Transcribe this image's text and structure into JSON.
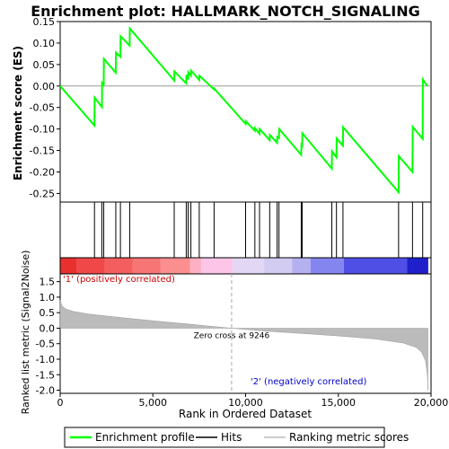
{
  "chart_data": {
    "title": "Enrichment plot: HALLMARK_NOTCH_SIGNALING",
    "type": "line",
    "xlim": [
      0,
      20000
    ],
    "x_ticks": [
      0,
      5000,
      10000,
      15000,
      20000
    ],
    "x_tick_labels": [
      "0",
      "5,000",
      "10,000",
      "15,000",
      "20,000"
    ],
    "xlabel": "Rank in Ordered Dataset",
    "es_panel": {
      "ylabel": "Enrichment score (ES)",
      "ylim": [
        -0.27,
        0.15
      ],
      "y_ticks": [
        -0.25,
        -0.2,
        -0.15,
        -0.1,
        -0.05,
        0.0,
        0.05,
        0.1,
        0.15
      ],
      "y_tick_labels": [
        "-0.25",
        "-0.20",
        "-0.15",
        "-0.10",
        "-0.05",
        "0.00",
        "0.05",
        "0.10",
        "0.15"
      ],
      "line_color": "#00ff00",
      "profile": [
        [
          0,
          0.0
        ],
        [
          1850,
          -0.092
        ],
        [
          1860,
          -0.027
        ],
        [
          2250,
          -0.049
        ],
        [
          2260,
          0.008
        ],
        [
          2350,
          0.004
        ],
        [
          2360,
          0.063
        ],
        [
          3000,
          0.031
        ],
        [
          3010,
          0.078
        ],
        [
          3250,
          0.068
        ],
        [
          3260,
          0.116
        ],
        [
          3750,
          0.094
        ],
        [
          3760,
          0.134
        ],
        [
          6150,
          0.013
        ],
        [
          6160,
          0.034
        ],
        [
          6800,
          0.006
        ],
        [
          6810,
          0.026
        ],
        [
          6900,
          0.015
        ],
        [
          6910,
          0.032
        ],
        [
          7050,
          0.024
        ],
        [
          7060,
          0.036
        ],
        [
          7500,
          0.014
        ],
        [
          7510,
          0.024
        ],
        [
          8300,
          -0.008
        ],
        [
          8310,
          -0.006
        ],
        [
          10000,
          -0.088
        ],
        [
          10010,
          -0.082
        ],
        [
          10500,
          -0.104
        ],
        [
          10510,
          -0.098
        ],
        [
          10750,
          -0.111
        ],
        [
          10760,
          -0.1
        ],
        [
          11300,
          -0.126
        ],
        [
          11310,
          -0.114
        ],
        [
          11700,
          -0.132
        ],
        [
          11710,
          -0.118
        ],
        [
          11800,
          -0.121
        ],
        [
          11810,
          -0.1
        ],
        [
          13000,
          -0.16
        ],
        [
          13010,
          -0.137
        ],
        [
          13050,
          -0.139
        ],
        [
          13060,
          -0.11
        ],
        [
          14650,
          -0.192
        ],
        [
          14660,
          -0.152
        ],
        [
          14900,
          -0.166
        ],
        [
          14910,
          -0.122
        ],
        [
          15250,
          -0.139
        ],
        [
          15260,
          -0.096
        ],
        [
          18250,
          -0.247
        ],
        [
          18260,
          -0.163
        ],
        [
          19000,
          -0.2
        ],
        [
          19010,
          -0.095
        ],
        [
          19550,
          -0.123
        ],
        [
          19560,
          0.015
        ],
        [
          19800,
          0.0
        ]
      ]
    },
    "hits": [
      1850,
      2250,
      2350,
      3000,
      3250,
      3750,
      6150,
      6800,
      6900,
      7050,
      7500,
      8300,
      10000,
      10500,
      10750,
      11300,
      11700,
      11800,
      13000,
      13050,
      14650,
      14900,
      15250,
      18250,
      19000,
      19550
    ],
    "metric_panel": {
      "ylabel": "Ranked list metric (Signal2Noise)",
      "ylim": [
        -2.1,
        1.75
      ],
      "y_ticks": [
        -2.0,
        -1.5,
        -1.0,
        -0.5,
        0.0,
        0.5,
        1.0,
        1.5
      ],
      "y_tick_labels": [
        "-2.0",
        "-1.5",
        "-1.0",
        "-0.5",
        "0.0",
        "0.5",
        "1.0",
        "1.5"
      ],
      "metric_curve": [
        [
          0,
          0.9
        ],
        [
          100,
          0.72
        ],
        [
          300,
          0.62
        ],
        [
          700,
          0.54
        ],
        [
          1500,
          0.46
        ],
        [
          3000,
          0.36
        ],
        [
          5000,
          0.24
        ],
        [
          7000,
          0.13
        ],
        [
          9246,
          0.0
        ],
        [
          11000,
          -0.09
        ],
        [
          13000,
          -0.17
        ],
        [
          15000,
          -0.25
        ],
        [
          17000,
          -0.35
        ],
        [
          18500,
          -0.48
        ],
        [
          19200,
          -0.62
        ],
        [
          19500,
          -0.78
        ],
        [
          19700,
          -1.05
        ],
        [
          19800,
          -1.5
        ],
        [
          19830,
          -2.0
        ]
      ],
      "zero_cross": 9246,
      "zero_cross_label": "Zero cross at 9246",
      "positive_label": "'1' (positively correlated)",
      "negative_label": "'2' (negatively correlated)"
    },
    "color_bar": [
      {
        "from": 0,
        "to": 900,
        "color": "#e8312f"
      },
      {
        "from": 900,
        "to": 2400,
        "color": "#f04848"
      },
      {
        "from": 2400,
        "to": 3900,
        "color": "#f55e5e"
      },
      {
        "from": 3900,
        "to": 5400,
        "color": "#f87575"
      },
      {
        "from": 5400,
        "to": 7000,
        "color": "#fb8e8e"
      },
      {
        "from": 7000,
        "to": 7600,
        "color": "#fdb0c4"
      },
      {
        "from": 7600,
        "to": 9300,
        "color": "#fdc6e8"
      },
      {
        "from": 9300,
        "to": 11000,
        "color": "#e2d8f5"
      },
      {
        "from": 11000,
        "to": 12500,
        "color": "#d2ccf3"
      },
      {
        "from": 12500,
        "to": 13500,
        "color": "#b5b0ef"
      },
      {
        "from": 13500,
        "to": 15300,
        "color": "#8585f0"
      },
      {
        "from": 15300,
        "to": 18700,
        "color": "#4f4fe6"
      },
      {
        "from": 18700,
        "to": 19850,
        "color": "#1f1fcc"
      }
    ],
    "legend": {
      "placement": "bottom",
      "items": [
        {
          "label": "Enrichment profile",
          "color": "#00ff00",
          "kind": "line"
        },
        {
          "label": "Hits",
          "color": "#000000",
          "kind": "line"
        },
        {
          "label": "Ranking metric scores",
          "color": "#bbbbbb",
          "kind": "line"
        }
      ]
    }
  }
}
